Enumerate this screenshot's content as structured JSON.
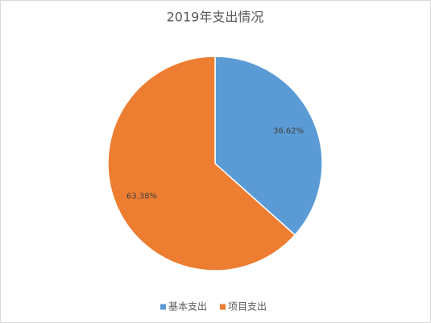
{
  "chart_data": {
    "type": "pie",
    "title": "2019年支出情况",
    "categories": [
      "基本支出",
      "项目支出"
    ],
    "values": [
      36.62,
      63.38
    ],
    "value_labels": [
      "36.62%",
      "63.38%"
    ],
    "colors": [
      "#5b9bd5",
      "#ed7d31"
    ],
    "legend": "bottom"
  }
}
